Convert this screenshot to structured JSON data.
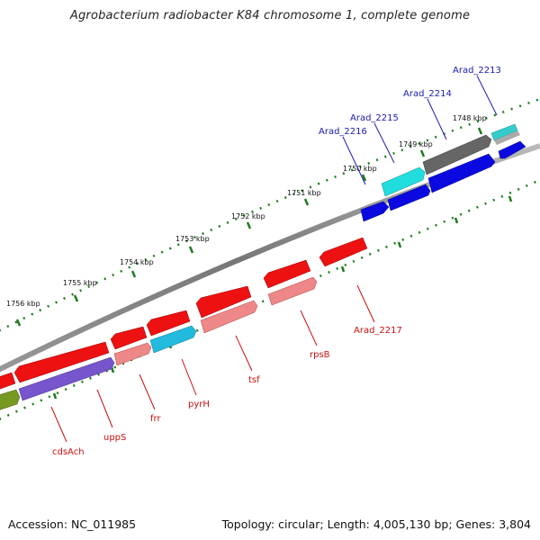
{
  "title": "Agrobacterium radiobacter K84 chromosome 1, complete genome",
  "footer": {
    "accession": "Accession: NC_011985",
    "summary": "Topology: circular; Length: 4,005,130 bp; Genes: 3,804"
  },
  "colors": {
    "backbone": "#7a7a7a",
    "tick": "#1f7a1f",
    "label_forward": "#1a1ab0",
    "label_reverse": "#c81010"
  },
  "scale": {
    "ticks": [
      {
        "label": "1748 kbp"
      },
      {
        "label": "1749 kbp"
      },
      {
        "label": "1750 kbp"
      },
      {
        "label": "1751 kbp"
      },
      {
        "label": "1752 kbp"
      },
      {
        "label": "1753 kbp"
      },
      {
        "label": "1754 kbp"
      },
      {
        "label": "1755 kbp"
      },
      {
        "label": "1756 kbp"
      }
    ]
  },
  "genes": [
    {
      "label": "Arad_2213",
      "strand": "forward",
      "color": "#33cccc"
    },
    {
      "label": "Arad_2214",
      "strand": "forward",
      "color": "#666666"
    },
    {
      "label": "Arad_2215",
      "strand": "forward",
      "color": "#22dddd"
    },
    {
      "label": "Arad_2216",
      "strand": "forward",
      "color": "#0a0ae0"
    },
    {
      "label": "Arad_2217",
      "strand": "reverse",
      "color": "#ee1111"
    },
    {
      "label": "rpsB",
      "strand": "reverse",
      "color": "#ee8888"
    },
    {
      "label": "tsf",
      "strand": "reverse",
      "color": "#ee8888"
    },
    {
      "label": "pyrH",
      "strand": "reverse",
      "color": "#22bbdd"
    },
    {
      "label": "frr",
      "strand": "reverse",
      "color": "#ee8888"
    },
    {
      "label": "uppS",
      "strand": "reverse",
      "color": "#7755cc"
    },
    {
      "label": "cdsAch",
      "strand": "reverse",
      "color": "#ee1111"
    }
  ]
}
